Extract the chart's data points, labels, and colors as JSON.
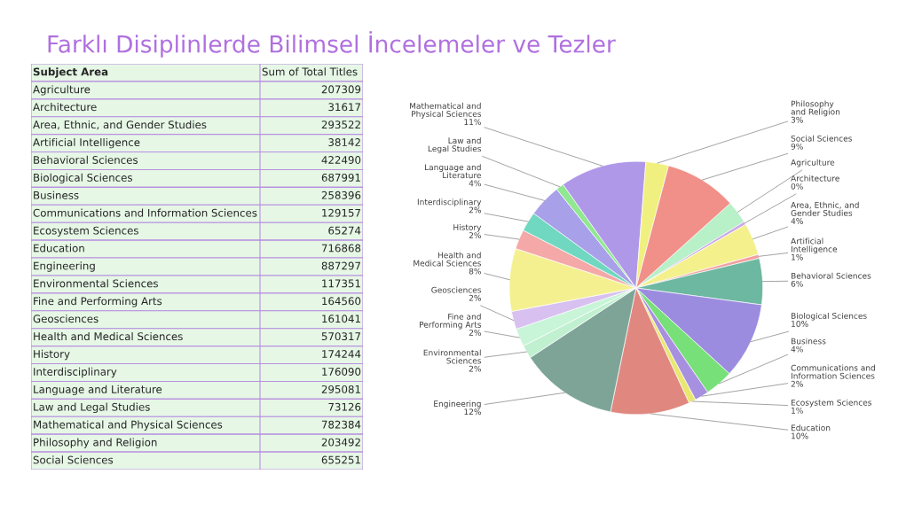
{
  "chart_data": [
    {
      "type": "other",
      "title": "Farklı Disiplinlerde Bilimsel İncelemeler ve Tezler",
      "annotations": [
        "Subject Area",
        "Sum of Total Titles"
      ],
      "categories": [
        "Agriculture",
        "Architecture",
        "Area, Ethnic, and Gender Studies",
        "Artificial Intelligence",
        "Behavioral Sciences",
        "Biological Sciences",
        "Business",
        "Communications and Information Sciences",
        "Ecosystem Sciences",
        "Education",
        "Engineering",
        "Environmental Sciences",
        "Fine and Performing Arts",
        "Geosciences",
        "Health and Medical Sciences",
        "History",
        "Interdisciplinary",
        "Language and Literature",
        "Law and Legal Studies",
        "Mathematical and Physical Sciences",
        "Philosophy and Religion",
        "Social Sciences"
      ],
      "values": [
        207309,
        31617,
        293522,
        38142,
        422490,
        687991,
        258396,
        129157,
        65274,
        716868,
        887297,
        117351,
        164560,
        161041,
        570317,
        174244,
        176090,
        295081,
        73126,
        782384,
        203492,
        655251
      ],
      "data_labels": true
    },
    {
      "type": "pie",
      "categories": [
        "Agriculture",
        "Architecture",
        "Area, Ethnic, and Gender Studies",
        "Artificial Intelligence",
        "Behavioral Sciences",
        "Biological Sciences",
        "Business",
        "Communications and Information Sciences",
        "Ecosystem Sciences",
        "Education",
        "Engineering",
        "Environmental Sciences",
        "Fine and Performing Arts",
        "Geosciences",
        "Health and Medical Sciences",
        "History",
        "Interdisciplinary",
        "Language and Literature",
        "Law and Legal Studies",
        "Mathematical and Physical Sciences",
        "Philosophy and Religion",
        "Social Sciences"
      ],
      "values": [
        2.9,
        0.4,
        4.1,
        0.5,
        5.9,
        9.7,
        3.6,
        1.8,
        0.9,
        10.1,
        12.5,
        1.7,
        2.3,
        2.3,
        8.0,
        2.5,
        2.5,
        4.2,
        1.0,
        11.0,
        2.9,
        9.2
      ],
      "value_labels": [
        null,
        "0%",
        "4%",
        "1%",
        "6%",
        "10%",
        "4%",
        "2%",
        "1%",
        "10%",
        "12%",
        "2%",
        "2%",
        "2%",
        "8%",
        "2%",
        "2%",
        "4%",
        null,
        "11%",
        "3%",
        "9%"
      ],
      "colors": [
        "#b8f0c8",
        "#c8a8e8",
        "#f4f08c",
        "#f4a0a0",
        "#6cb8a0",
        "#9c8ce0",
        "#78e078",
        "#a890e0",
        "#e8e870",
        "#e08880",
        "#7ea498",
        "#c0f0d0",
        "#c8f4d8",
        "#d8c0f0",
        "#f4f090",
        "#f4a8a8",
        "#70d8c0",
        "#a8a0e8",
        "#90e890",
        "#b098e8",
        "#f0f080",
        "#f09088"
      ]
    }
  ]
}
